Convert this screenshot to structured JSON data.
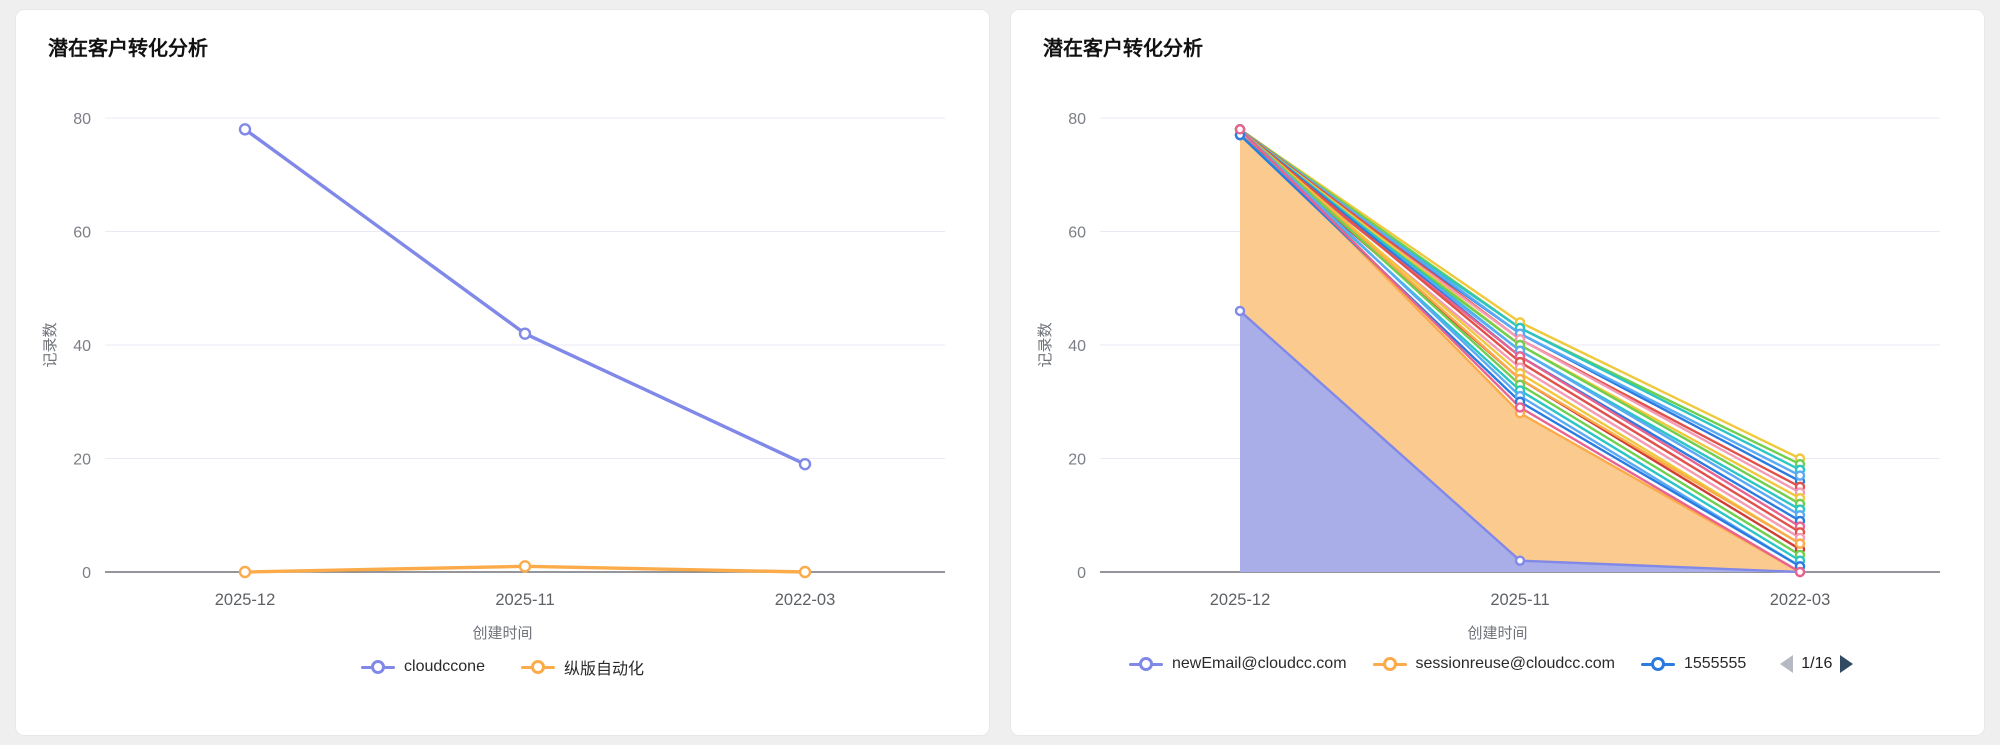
{
  "ui": {
    "axis_color": "#71747c",
    "grid_color": "#e8eaf6",
    "tick_color": "#7b7e85",
    "category_color": "#5e6166",
    "page_background": "#efefef"
  },
  "chart_data": [
    {
      "type": "line",
      "title": "潜在客户转化分析",
      "xlabel": "创建时间",
      "ylabel": "记录数",
      "categories": [
        "2025-12",
        "2025-11",
        "2022-03"
      ],
      "ylim": [
        0,
        80
      ],
      "yticks": [
        0,
        20,
        40,
        60,
        80
      ],
      "grid": true,
      "legend_position": "bottom-center",
      "series": [
        {
          "name": "cloudccone",
          "color": "#8088e8",
          "values": [
            78,
            42,
            19
          ]
        },
        {
          "name": "纵版自动化",
          "color": "#fbab4a",
          "values": [
            0,
            1,
            0
          ]
        }
      ]
    },
    {
      "type": "area",
      "title": "潜在客户转化分析",
      "xlabel": "创建时间",
      "ylabel": "记录数",
      "categories": [
        "2025-12",
        "2025-11",
        "2022-03"
      ],
      "ylim": [
        0,
        80
      ],
      "yticks": [
        0,
        20,
        40,
        60,
        80
      ],
      "grid": true,
      "legend_position": "bottom",
      "legend_pagination": {
        "label": "1/16",
        "prev_enabled": false,
        "next_enabled": true
      },
      "series": [
        {
          "name": "newEmail@cloudcc.com",
          "color": "#8088e8",
          "fill": "#a9aee9",
          "values": [
            46,
            2,
            0
          ]
        },
        {
          "name": "sessionreuse@cloudcc.com",
          "color": "#fbab4a",
          "fill": "#fbca8e",
          "values": [
            78,
            28,
            0
          ]
        },
        {
          "name": "1555555",
          "color": "#2b7be0",
          "values": [
            77,
            42,
            16
          ]
        },
        {
          "name": "",
          "color": "#f0c83c",
          "values": [
            78,
            44,
            20
          ]
        },
        {
          "name": "",
          "color": "#6fcf4e",
          "values": [
            78,
            43,
            19
          ]
        },
        {
          "name": "",
          "color": "#2cc5c5",
          "values": [
            77,
            43,
            18
          ]
        },
        {
          "name": "",
          "color": "#5baaf5",
          "values": [
            78,
            42,
            17
          ]
        },
        {
          "name": "",
          "color": "#e0524a",
          "values": [
            78,
            41,
            15
          ]
        },
        {
          "name": "",
          "color": "#f49bb5",
          "values": [
            77,
            41,
            14
          ]
        },
        {
          "name": "",
          "color": "#f0c83c",
          "values": [
            78,
            40,
            13
          ]
        },
        {
          "name": "",
          "color": "#6fcf4e",
          "values": [
            77,
            40,
            12
          ]
        },
        {
          "name": "",
          "color": "#2cc5c5",
          "values": [
            78,
            39,
            11
          ]
        },
        {
          "name": "",
          "color": "#5baaf5",
          "values": [
            77,
            39,
            10
          ]
        },
        {
          "name": "",
          "color": "#2b7be0",
          "values": [
            78,
            38,
            9
          ]
        },
        {
          "name": "",
          "color": "#e8638f",
          "values": [
            77,
            38,
            8
          ]
        },
        {
          "name": "",
          "color": "#e0524a",
          "values": [
            78,
            37,
            7
          ]
        },
        {
          "name": "",
          "color": "#f49bb5",
          "values": [
            77,
            36,
            6
          ]
        },
        {
          "name": "",
          "color": "#f0c83c",
          "values": [
            78,
            35,
            5
          ]
        },
        {
          "name": "",
          "color": "#cf3f33",
          "values": [
            77,
            34,
            4
          ]
        },
        {
          "name": "",
          "color": "#fbab4a",
          "values": [
            78,
            34,
            5
          ]
        },
        {
          "name": "",
          "color": "#6fcf4e",
          "values": [
            78,
            33,
            3
          ]
        },
        {
          "name": "",
          "color": "#2cc5c5",
          "values": [
            77,
            32,
            2
          ]
        },
        {
          "name": "",
          "color": "#5baaf5",
          "values": [
            78,
            31,
            1
          ]
        },
        {
          "name": "",
          "color": "#2b7be0",
          "values": [
            77,
            30,
            1
          ]
        },
        {
          "name": "",
          "color": "#e8638f",
          "values": [
            78,
            29,
            0
          ]
        }
      ]
    }
  ]
}
